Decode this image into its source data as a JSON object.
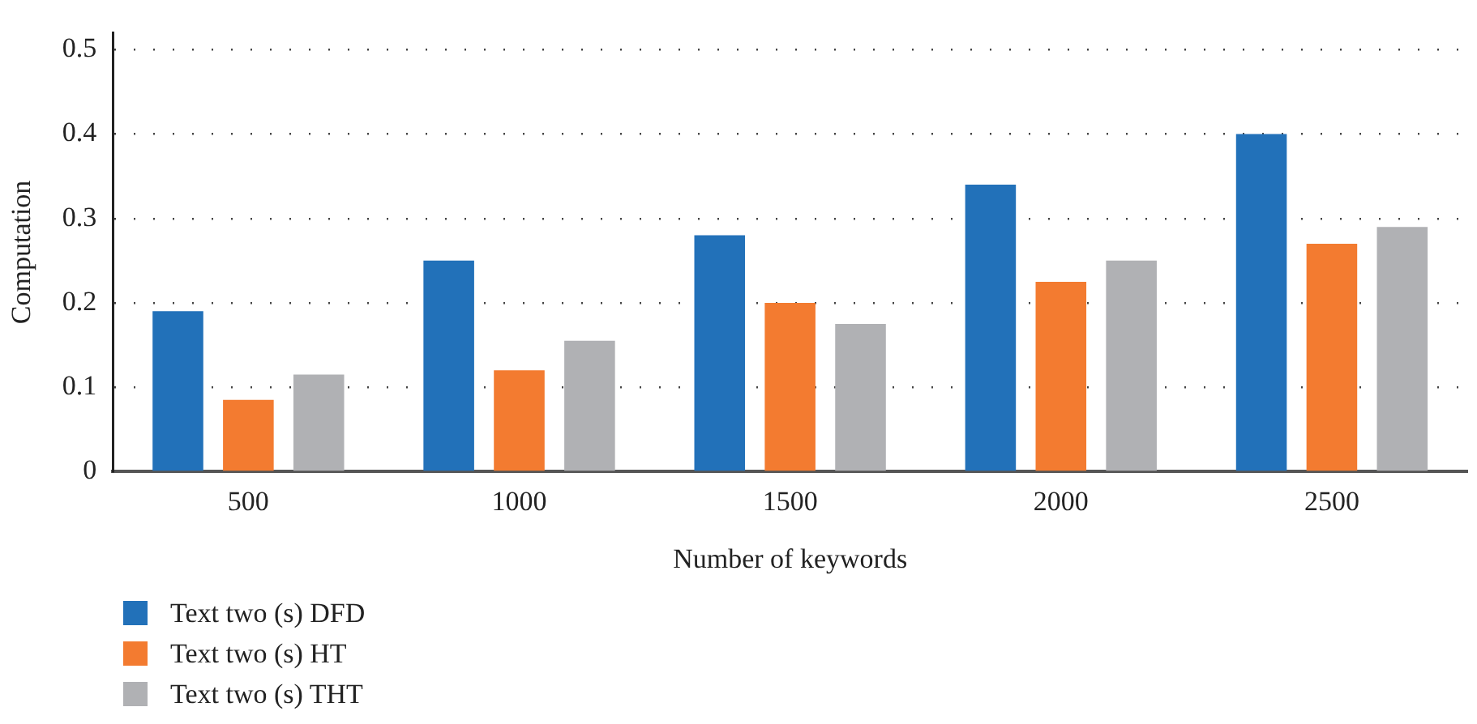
{
  "chart_data": {
    "type": "bar",
    "xlabel": "Number of keywords",
    "ylabel": "Computation",
    "categories": [
      "500",
      "1000",
      "1500",
      "2000",
      "2500"
    ],
    "series": [
      {
        "name": "Text two (s) DFD",
        "color": "#2271b9",
        "values": [
          0.19,
          0.25,
          0.28,
          0.34,
          0.4
        ]
      },
      {
        "name": "Text two (s) HT",
        "color": "#f37b30",
        "values": [
          0.085,
          0.12,
          0.2,
          0.225,
          0.27
        ]
      },
      {
        "name": "Text two (s) THT",
        "color": "#b0b1b4",
        "values": [
          0.115,
          0.155,
          0.175,
          0.25,
          0.29
        ]
      }
    ],
    "ylim": [
      0,
      0.52
    ],
    "yticks": [
      0,
      0.1,
      0.2,
      0.3,
      0.4,
      0.5
    ],
    "grid": "y",
    "legend": "bottom"
  }
}
